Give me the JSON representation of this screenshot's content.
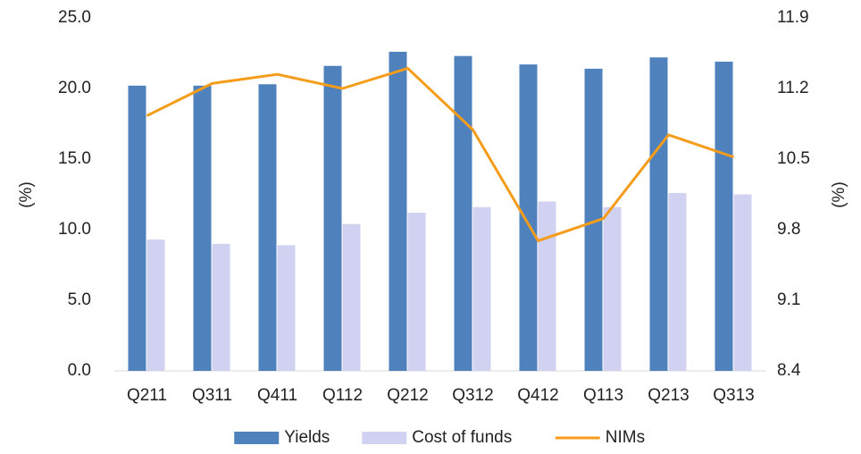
{
  "chart_data": {
    "type": "bar-line",
    "categories": [
      "Q211",
      "Q311",
      "Q411",
      "Q112",
      "Q212",
      "Q312",
      "Q412",
      "Q113",
      "Q213",
      "Q313"
    ],
    "series": [
      {
        "name": "Yields",
        "type": "bar",
        "color": "#4f81bd",
        "values": [
          20.2,
          20.2,
          20.3,
          21.6,
          22.6,
          22.3,
          21.7,
          21.4,
          22.2,
          21.9
        ]
      },
      {
        "name": "Cost of funds",
        "type": "bar",
        "color": "#d1d1f1",
        "values": [
          9.3,
          9.0,
          8.9,
          10.4,
          11.2,
          11.6,
          12.0,
          11.6,
          12.6,
          12.5
        ]
      },
      {
        "name": "NIMs",
        "type": "line",
        "axis": "y2",
        "color": "#f59d1b",
        "values": [
          10.93,
          11.25,
          11.34,
          11.2,
          11.4,
          10.79,
          9.69,
          9.91,
          10.74,
          10.52
        ]
      }
    ],
    "ylabel": "(%)",
    "y2label": "(%)",
    "ylim": [
      0,
      25
    ],
    "yticks": [
      {
        "value": 0,
        "label": "0.0"
      },
      {
        "value": 5,
        "label": "5.0"
      },
      {
        "value": 10,
        "label": "10.0"
      },
      {
        "value": 15,
        "label": "15.0"
      },
      {
        "value": 20,
        "label": "20.0"
      },
      {
        "value": 25,
        "label": "25.0"
      }
    ],
    "y2lim": [
      8.4,
      11.9
    ],
    "y2ticks": [
      8.4,
      9.1,
      9.8,
      10.5,
      11.2,
      11.9
    ],
    "legend": "bottom",
    "grid": false
  }
}
